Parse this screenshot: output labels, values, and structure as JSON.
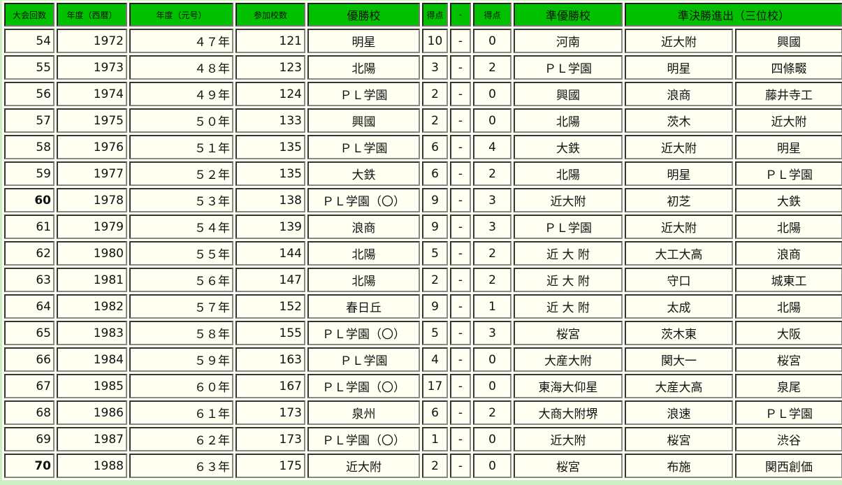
{
  "headers": [
    "大会回数",
    "年度（西暦）",
    "年度（元号）",
    "参加校数",
    "優勝校",
    "得点",
    "-",
    "得点",
    "準優勝校",
    "準決勝進出（三位校）"
  ],
  "rows": [
    {
      "no": "54",
      "bold": false,
      "year": "1972",
      "era": "４７年",
      "schools": "121",
      "winner": "明星",
      "s1": "10",
      "dash": "-",
      "s2": "0",
      "runner": "河南",
      "semi1": "近大附",
      "semi2": "興國"
    },
    {
      "no": "55",
      "bold": false,
      "year": "1973",
      "era": "４８年",
      "schools": "123",
      "winner": "北陽",
      "s1": "3",
      "dash": "-",
      "s2": "2",
      "runner": "ＰＬ学園",
      "semi1": "明星",
      "semi2": "四條畷"
    },
    {
      "no": "56",
      "bold": false,
      "year": "1974",
      "era": "４９年",
      "schools": "124",
      "winner": "ＰＬ学園",
      "s1": "2",
      "dash": "-",
      "s2": "0",
      "runner": "興國",
      "semi1": "浪商",
      "semi2": "藤井寺工"
    },
    {
      "no": "57",
      "bold": false,
      "year": "1975",
      "era": "５０年",
      "schools": "133",
      "winner": "興國",
      "s1": "2",
      "dash": "-",
      "s2": "0",
      "runner": "北陽",
      "semi1": "茨木",
      "semi2": "近大附"
    },
    {
      "no": "58",
      "bold": false,
      "year": "1976",
      "era": "５１年",
      "schools": "135",
      "winner": "ＰＬ学園",
      "s1": "6",
      "dash": "-",
      "s2": "4",
      "runner": "大鉄",
      "semi1": "近大附",
      "semi2": "明星"
    },
    {
      "no": "59",
      "bold": false,
      "year": "1977",
      "era": "５２年",
      "schools": "135",
      "winner": "大鉄",
      "s1": "6",
      "dash": "-",
      "s2": "2",
      "runner": "北陽",
      "semi1": "明星",
      "semi2": "ＰＬ学園"
    },
    {
      "no": "60",
      "bold": true,
      "year": "1978",
      "era": "５３年",
      "schools": "138",
      "winner": "ＰＬ学園（〇）",
      "s1": "9",
      "dash": "-",
      "s2": "3",
      "runner": "近大附",
      "semi1": "初芝",
      "semi2": "大鉄"
    },
    {
      "no": "61",
      "bold": false,
      "year": "1979",
      "era": "５４年",
      "schools": "139",
      "winner": "浪商",
      "s1": "9",
      "dash": "-",
      "s2": "3",
      "runner": "ＰＬ学園",
      "semi1": "近大附",
      "semi2": "北陽"
    },
    {
      "no": "62",
      "bold": false,
      "year": "1980",
      "era": "５５年",
      "schools": "144",
      "winner": "北陽",
      "s1": "5",
      "dash": "-",
      "s2": "2",
      "runner": "近 大 附",
      "semi1": "大工大高",
      "semi2": "浪商"
    },
    {
      "no": "63",
      "bold": false,
      "year": "1981",
      "era": "５６年",
      "schools": "147",
      "winner": "北陽",
      "s1": "2",
      "dash": "-",
      "s2": "2",
      "runner": "近 大 附",
      "semi1": "守口",
      "semi2": "城東工"
    },
    {
      "no": "64",
      "bold": false,
      "year": "1982",
      "era": "５７年",
      "schools": "152",
      "winner": "春日丘",
      "s1": "9",
      "dash": "-",
      "s2": "1",
      "runner": "近 大 附",
      "semi1": "太成",
      "semi2": "北陽"
    },
    {
      "no": "65",
      "bold": false,
      "year": "1983",
      "era": "５８年",
      "schools": "155",
      "winner": "ＰＬ学園（〇）",
      "s1": "5",
      "dash": "-",
      "s2": "3",
      "runner": "桜宮",
      "semi1": "茨木東",
      "semi2": "大阪"
    },
    {
      "no": "66",
      "bold": false,
      "year": "1984",
      "era": "５９年",
      "schools": "163",
      "winner": "ＰＬ学園",
      "s1": "4",
      "dash": "-",
      "s2": "0",
      "runner": "大産大附",
      "semi1": "関大一",
      "semi2": "桜宮"
    },
    {
      "no": "67",
      "bold": false,
      "year": "1985",
      "era": "６０年",
      "schools": "167",
      "winner": "ＰＬ学園（〇）",
      "s1": "17",
      "dash": "-",
      "s2": "0",
      "runner": "東海大仰星",
      "semi1": "大産大高",
      "semi2": "泉尾"
    },
    {
      "no": "68",
      "bold": false,
      "year": "1986",
      "era": "６１年",
      "schools": "173",
      "winner": "泉州",
      "s1": "6",
      "dash": "-",
      "s2": "2",
      "runner": "大商大附堺",
      "semi1": "浪速",
      "semi2": "ＰＬ学園"
    },
    {
      "no": "69",
      "bold": false,
      "year": "1987",
      "era": "６２年",
      "schools": "173",
      "winner": "ＰＬ学園（〇）",
      "s1": "1",
      "dash": "-",
      "s2": "0",
      "runner": "近大附",
      "semi1": "桜宮",
      "semi2": "渋谷"
    },
    {
      "no": "70",
      "bold": true,
      "year": "1988",
      "era": "６３年",
      "schools": "175",
      "winner": "近大附",
      "s1": "2",
      "dash": "-",
      "s2": "0",
      "runner": "桜宮",
      "semi1": "布施",
      "semi2": "関西創価"
    }
  ],
  "colors": {
    "header": "#00c000",
    "cell": "#fffff2",
    "page": "#cdeec4"
  }
}
